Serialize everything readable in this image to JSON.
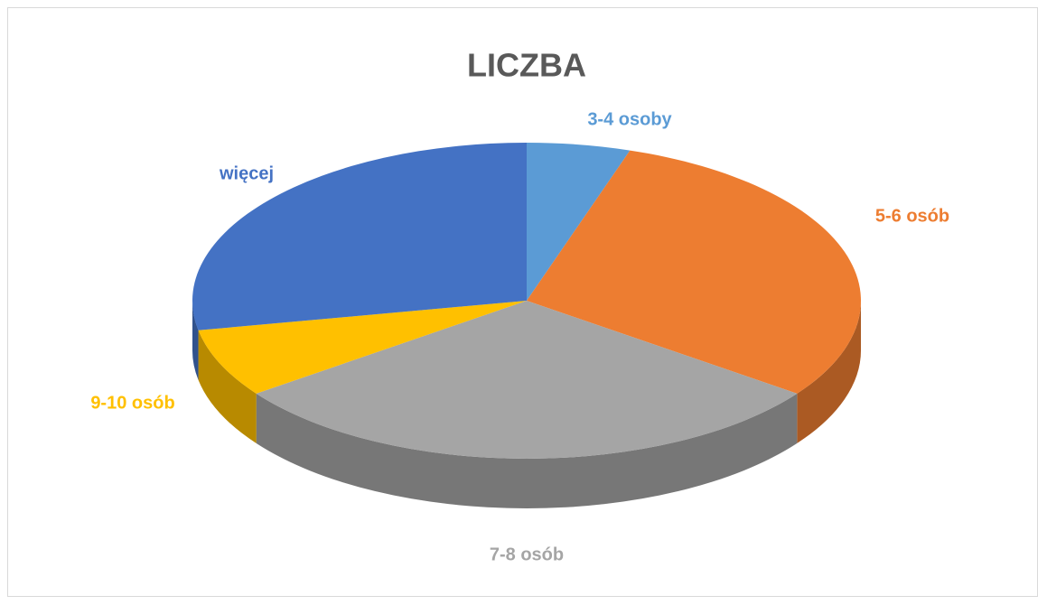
{
  "chart_data": {
    "type": "pie",
    "title": "LICZBA",
    "categories": [
      "3-4 osoby",
      "5-6 osób",
      "7-8 osób",
      "9-10 osób",
      "więcej"
    ],
    "values": [
      5,
      30,
      30,
      7,
      28
    ],
    "colors": [
      "#5b9bd5",
      "#ed7d31",
      "#a5a5a5",
      "#ffc000",
      "#4472c4"
    ]
  }
}
